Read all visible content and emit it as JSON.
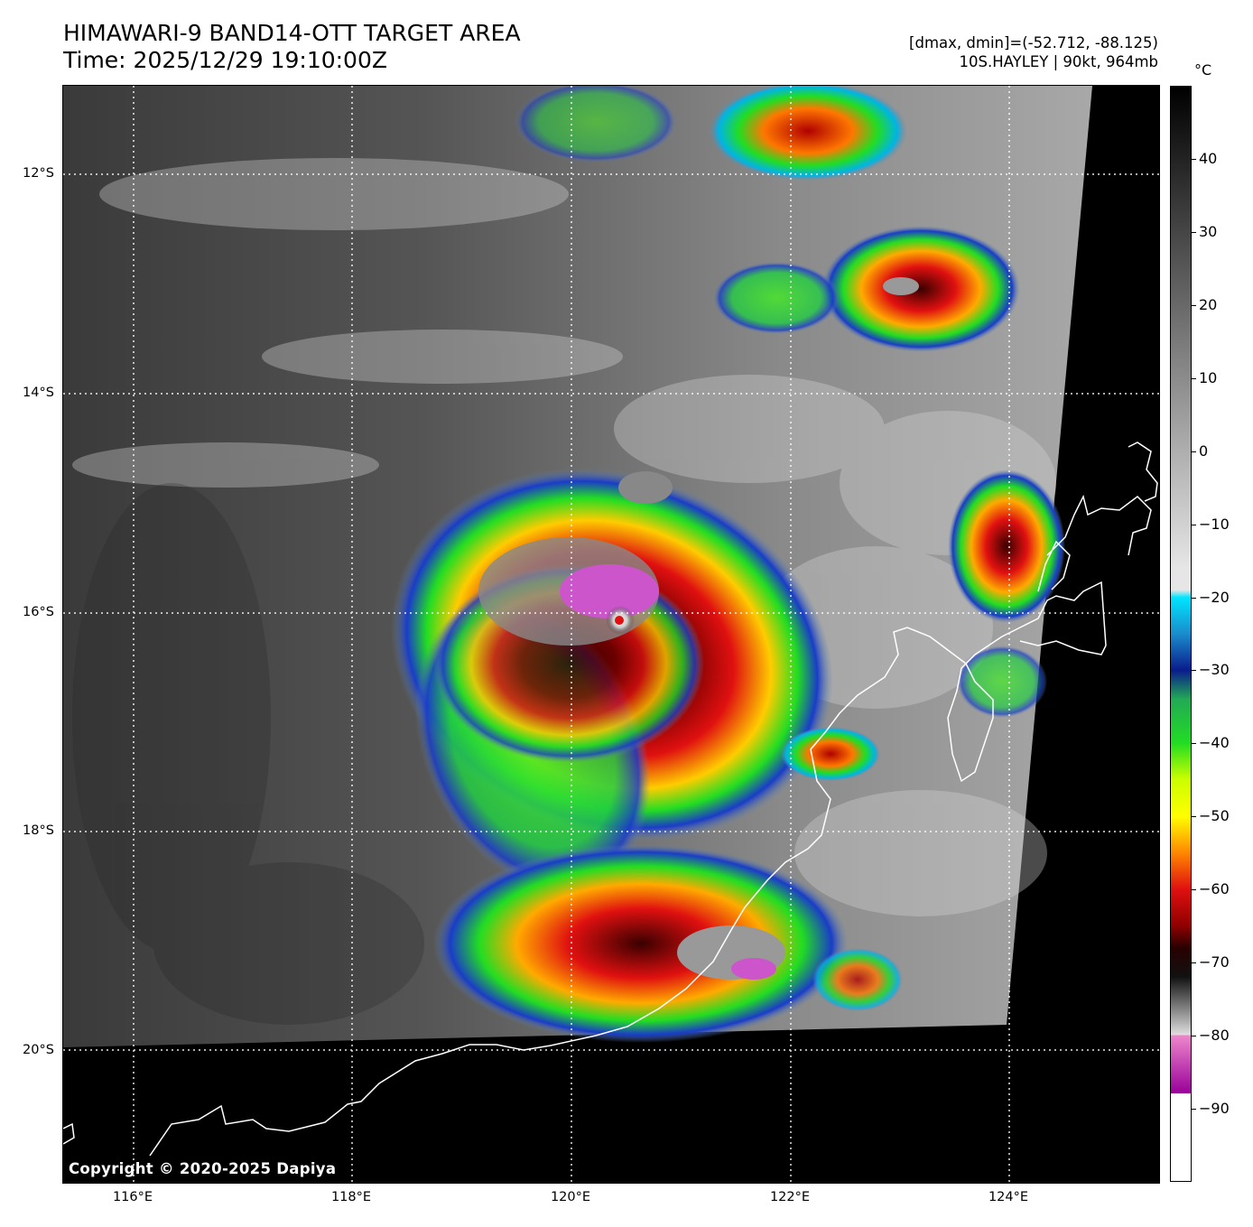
{
  "header": {
    "title": "HIMAWARI-9 BAND14-OTT TARGET AREA",
    "time": "Time: 2025/12/29 19:10:00Z",
    "dmax_dmin": "[dmax, dmin]=(-52.712, -88.125)",
    "storm": "10S.HAYLEY | 90kt, 964mb"
  },
  "map": {
    "copyright": "Copyright © 2020-2025 Dapiya",
    "lat_labels": [
      "12°S",
      "14°S",
      "16°S",
      "18°S",
      "20°S"
    ],
    "lon_labels": [
      "116°E",
      "118°E",
      "120°E",
      "122°E",
      "124°E"
    ]
  },
  "colorbar": {
    "unit": "°C",
    "labels": [
      "40",
      "30",
      "20",
      "10",
      "0",
      "−10",
      "−20",
      "−30",
      "−40",
      "−50",
      "−60",
      "−70",
      "−80",
      "−90"
    ],
    "range": [
      -100,
      50
    ],
    "colors": {
      "warm_black": "#000000",
      "cold_gray": "#e6e6e6",
      "cyan": "#00e5ff",
      "blue": "#0a1c8c",
      "green": "#22dd22",
      "yellow": "#ffff00",
      "red": "#e01010",
      "dark_red": "#2a0000",
      "magenta": "#cc55cc",
      "white": "#ffffff"
    }
  }
}
